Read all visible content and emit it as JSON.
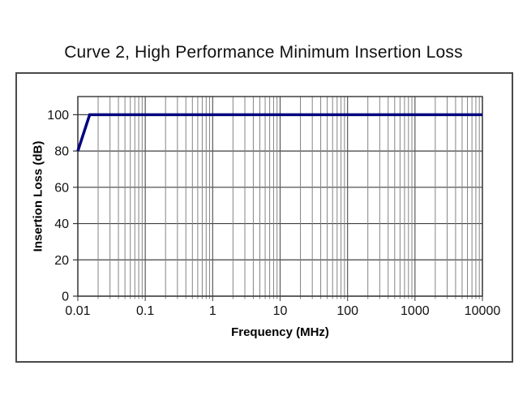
{
  "chart": {
    "title": "Curve 2, High Performance Minimum Insertion Loss",
    "x_axis": {
      "label": "Frequency (MHz)",
      "scale": "log",
      "ticks": [
        0.01,
        0.1,
        1,
        10,
        100,
        1000,
        10000
      ],
      "tick_labels": [
        "0.01",
        "0.1",
        "1",
        "10",
        "100",
        "1000",
        "10000"
      ]
    },
    "y_axis": {
      "label": "Insertion Loss (dB)",
      "min": 0,
      "max": 110,
      "ticks": [
        0,
        20,
        40,
        60,
        80,
        100
      ],
      "tick_labels": [
        "0",
        "20",
        "40",
        "60",
        "80",
        "100"
      ]
    },
    "colors": {
      "curve": "#000080",
      "grid_major_h": "#3f3f3f",
      "grid_major_v": "#5a5a5a",
      "grid_minor": "#848484",
      "plot_border": "#333333",
      "frame_border": "#4a4a4a",
      "text": "#111111"
    }
  },
  "chart_data": {
    "type": "line",
    "title": "Curve 2, High Performance Minimum Insertion Loss",
    "xlabel": "Frequency (MHz)",
    "ylabel": "Insertion Loss (dB)",
    "x_scale": "log",
    "xlim": [
      0.01,
      10000
    ],
    "ylim": [
      0,
      110
    ],
    "y_major_unit": 20,
    "grid": true,
    "legend": false,
    "series": [
      {
        "name": "Curve 2",
        "points": [
          [
            0.01,
            80
          ],
          [
            0.015,
            100
          ],
          [
            10000,
            100
          ]
        ]
      }
    ]
  }
}
